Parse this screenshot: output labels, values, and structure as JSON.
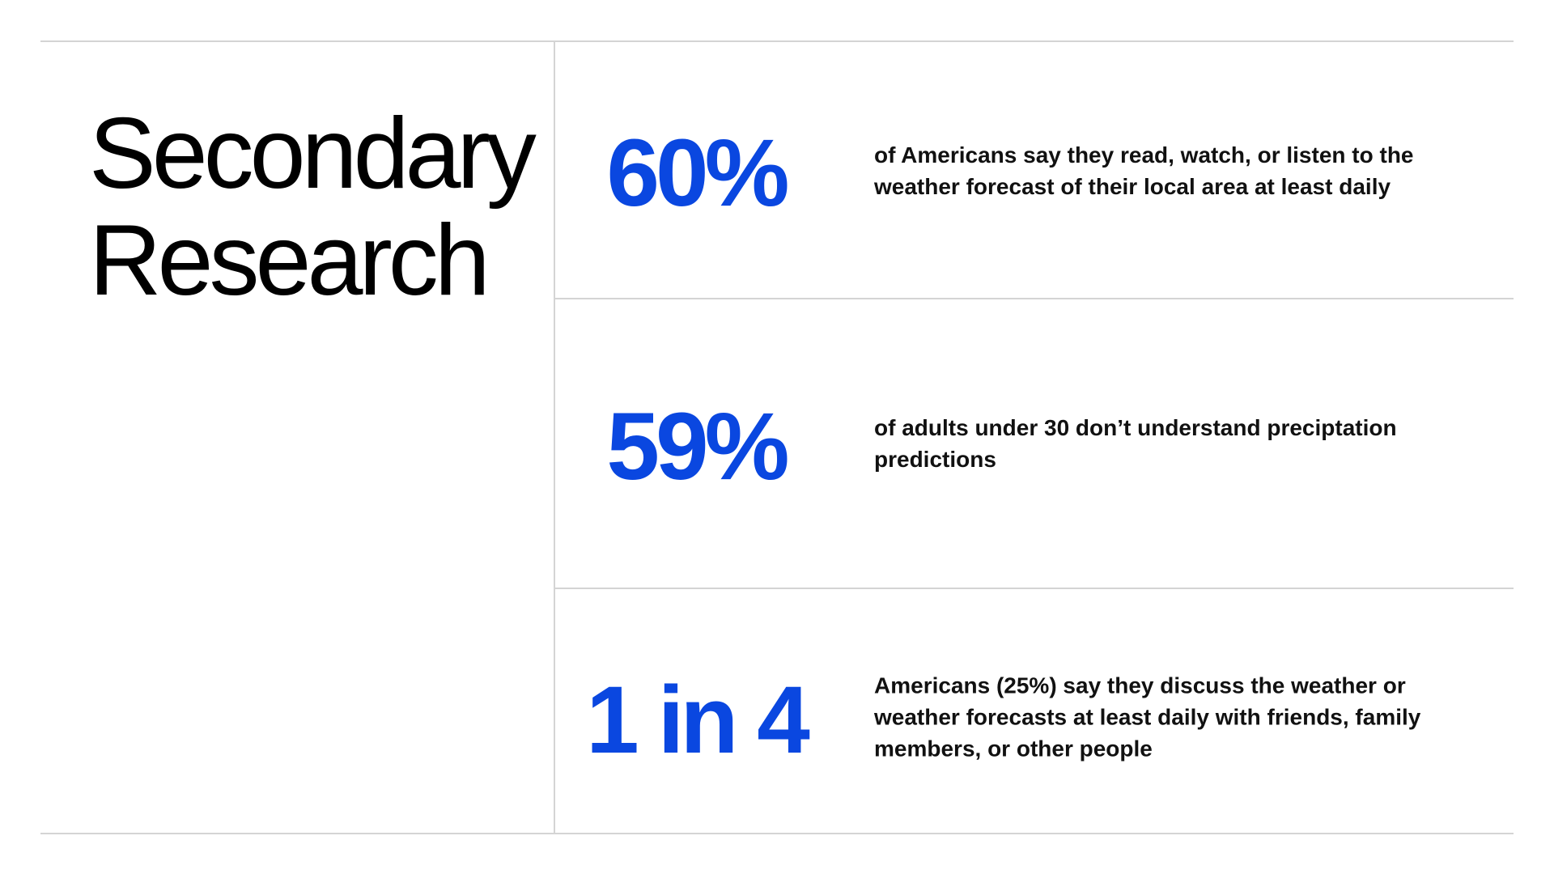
{
  "title": [
    "Secondary",
    "Research"
  ],
  "stats": [
    {
      "figure": "60%",
      "text": "of Americans say they read, watch, or listen to the weather forecast of their local area at least daily"
    },
    {
      "figure": "59%",
      "text": "of adults under 30 don’t understand preciptation predictions"
    },
    {
      "figure": "1 in 4",
      "text": "Americans (25%) say they discuss the weather or weather forecasts at least daily with friends, family members, or other people"
    }
  ]
}
